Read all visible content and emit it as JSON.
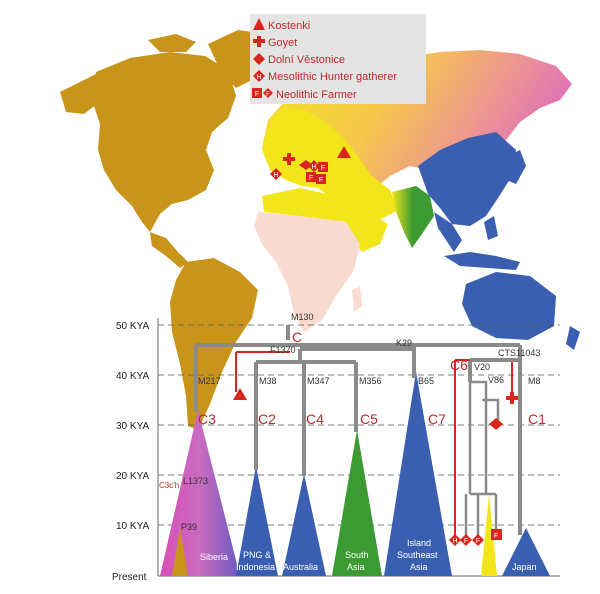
{
  "legend": {
    "items": [
      {
        "label": "Kostenki",
        "symbol": "triangle"
      },
      {
        "label": "Goyet",
        "symbol": "cross"
      },
      {
        "label": "Dolní Věstonice",
        "symbol": "diamond"
      },
      {
        "label": "Mesolithic Hunter gatherer",
        "symbol": "H-diamond"
      },
      {
        "label": "Neolithic Farmer",
        "symbol": "F-square"
      }
    ]
  },
  "axis": {
    "ticks": [
      "50 KYA",
      "40 KYA",
      "30 KYA",
      "20 KYA",
      "10 KYA",
      "Present"
    ]
  },
  "markers": {
    "m130": "M130",
    "f1370": "F1370",
    "k29": "K29",
    "cts11043": "CTS11043",
    "v20": "V20",
    "v86": "V86",
    "m8": "M8",
    "m217": "M217",
    "m38": "M38",
    "m347": "M347",
    "m356": "M356",
    "b65": "B65",
    "l1373": "L1373",
    "p39": "P39",
    "c3ch": "C3c'h"
  },
  "clades": {
    "c": "C",
    "c3": "C3",
    "c2": "C2",
    "c4": "C4",
    "c5": "C5",
    "c7": "C7",
    "c6": "C6",
    "c1": "C1"
  },
  "regions": {
    "siberia": "Siberia",
    "png1": "PNG &",
    "png2": "Indonesia",
    "australia": "Australia",
    "southasia1": "South",
    "southasia2": "Asia",
    "isea1": "Island",
    "isea2": "Southeast",
    "isea3": "Asia",
    "japan": "Japan"
  },
  "symbol_letters": {
    "hunter": "H",
    "farmer": "F"
  },
  "colors": {
    "americas": "#c8951a",
    "europe": "#f2e61a",
    "siberia_pink": "#e070b8",
    "africa": "#f9dad0",
    "south_asia": "#3c9a32",
    "east_asia": "#3a5fb0",
    "tree": "#8a8a8a",
    "red": "#d8261e",
    "legend_bg": "#e4e4e4"
  }
}
